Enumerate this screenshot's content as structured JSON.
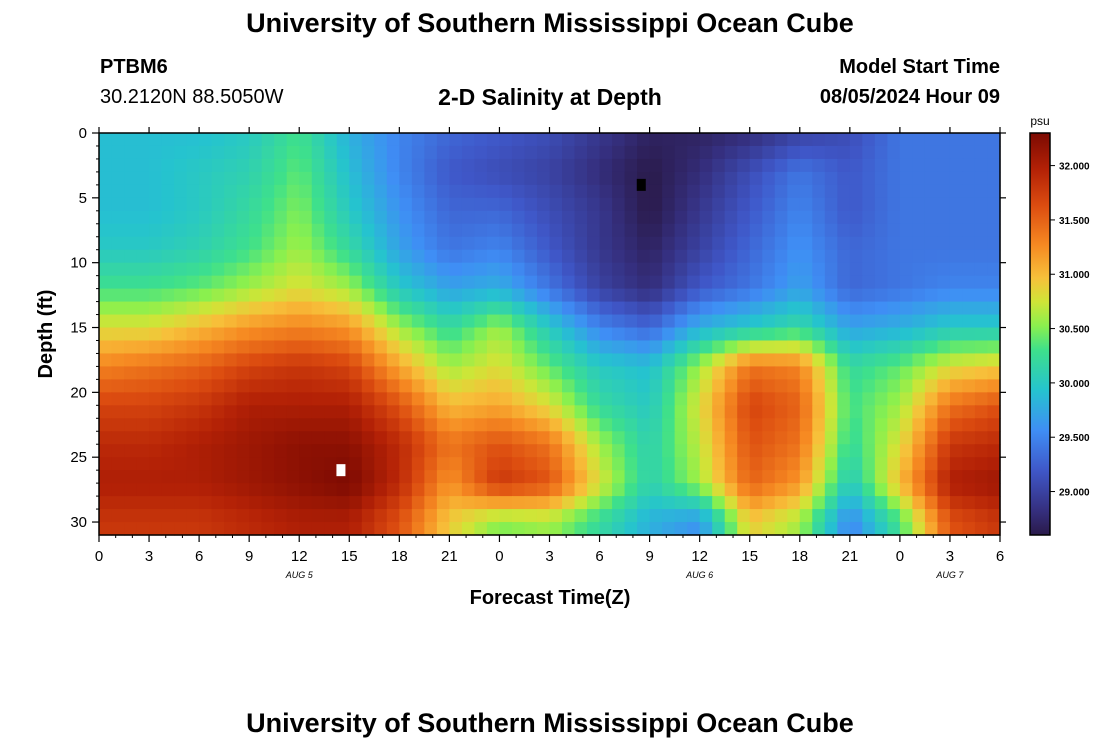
{
  "header": {
    "title": "University of Southern Mississippi Ocean Cube",
    "station_id": "PTBM6",
    "station_coords": "30.2120N  88.5050W",
    "subtitle": "2-D Salinity at Depth",
    "model_start_label": "Model Start Time",
    "model_start_value": "08/05/2024 Hour 09"
  },
  "footer": {
    "title": "University of Southern Mississippi Ocean Cube"
  },
  "chart_data": {
    "type": "heatmap",
    "title": "2-D Salinity at Depth",
    "xlabel": "Forecast Time(Z)",
    "ylabel": "Depth (ft)",
    "x_ticks": [
      "0",
      "3",
      "6",
      "9",
      "12",
      "15",
      "18",
      "21",
      "0",
      "3",
      "6",
      "9",
      "12",
      "15",
      "18",
      "21",
      "0",
      "3",
      "6"
    ],
    "x_range_hours": [
      0,
      54
    ],
    "day_labels": [
      {
        "label": "AUG 5",
        "hour": 12
      },
      {
        "label": "AUG 6",
        "hour": 36
      },
      {
        "label": "AUG 7",
        "hour": 51
      }
    ],
    "y_ticks": [
      0,
      5,
      10,
      15,
      20,
      25,
      30
    ],
    "ylim": [
      0,
      31
    ],
    "y_inverted": true,
    "colorbar": {
      "unit": "psu",
      "ticks": [
        "29.000",
        "29.500",
        "30.000",
        "30.500",
        "31.000",
        "31.500",
        "32.000"
      ],
      "range": [
        28.6,
        32.3
      ]
    },
    "markers": [
      {
        "type": "min",
        "hour": 32.5,
        "depth": 4,
        "color": "#000000"
      },
      {
        "type": "max",
        "hour": 14.5,
        "depth": 26,
        "color": "#ffffff"
      }
    ],
    "depths": [
      0,
      3,
      6,
      9,
      12,
      15,
      18,
      21,
      24,
      27,
      30
    ],
    "hours": [
      0,
      3,
      6,
      9,
      12,
      15,
      18,
      21,
      24,
      27,
      30,
      33,
      36,
      39,
      42,
      45,
      48,
      51,
      54
    ],
    "values": [
      [
        29.9,
        29.9,
        29.9,
        30.0,
        30.3,
        29.8,
        29.5,
        29.3,
        29.2,
        29.1,
        28.9,
        28.7,
        28.7,
        28.8,
        29.0,
        29.1,
        29.4,
        29.4,
        29.4
      ],
      [
        29.9,
        29.9,
        30.0,
        30.1,
        30.4,
        29.9,
        29.5,
        29.2,
        29.1,
        29.0,
        28.8,
        28.6,
        28.8,
        29.1,
        29.4,
        29.2,
        29.4,
        29.4,
        29.4
      ],
      [
        29.9,
        29.9,
        30.0,
        30.2,
        30.5,
        30.0,
        29.6,
        29.3,
        29.3,
        29.1,
        28.9,
        28.6,
        28.9,
        29.2,
        29.5,
        29.2,
        29.4,
        29.4,
        29.4
      ],
      [
        30.0,
        30.0,
        30.1,
        30.3,
        30.6,
        30.2,
        29.7,
        29.4,
        29.5,
        29.2,
        28.9,
        28.7,
        29.0,
        29.3,
        29.6,
        29.3,
        29.4,
        29.4,
        29.4
      ],
      [
        30.3,
        30.3,
        30.4,
        30.6,
        30.8,
        30.6,
        30.0,
        29.7,
        29.8,
        29.4,
        29.0,
        28.8,
        29.2,
        29.4,
        29.7,
        29.3,
        29.4,
        29.5,
        29.5
      ],
      [
        30.8,
        30.8,
        31.0,
        31.2,
        31.3,
        31.2,
        30.6,
        30.2,
        30.6,
        30.0,
        29.5,
        29.3,
        29.8,
        30.0,
        30.2,
        29.7,
        29.8,
        30.0,
        30.0
      ],
      [
        31.3,
        31.4,
        31.5,
        31.7,
        31.8,
        31.7,
        31.1,
        30.6,
        30.8,
        30.4,
        30.0,
        29.9,
        30.6,
        31.4,
        31.3,
        30.2,
        30.4,
        30.8,
        30.9
      ],
      [
        31.7,
        31.7,
        31.8,
        32.0,
        32.0,
        32.0,
        31.6,
        31.0,
        31.1,
        30.8,
        30.2,
        30.0,
        30.8,
        31.7,
        31.5,
        30.3,
        30.6,
        31.4,
        31.6
      ],
      [
        31.9,
        31.9,
        32.0,
        32.1,
        32.2,
        32.2,
        31.9,
        31.4,
        31.6,
        31.4,
        30.6,
        30.1,
        30.7,
        31.6,
        31.4,
        30.2,
        30.8,
        31.8,
        31.9
      ],
      [
        32.0,
        32.0,
        32.0,
        32.1,
        32.2,
        32.3,
        31.9,
        31.2,
        31.8,
        31.6,
        30.8,
        30.1,
        30.6,
        31.5,
        31.2,
        30.0,
        31.0,
        32.0,
        32.1
      ],
      [
        31.8,
        31.8,
        31.8,
        31.9,
        32.0,
        32.0,
        31.6,
        30.9,
        30.5,
        30.6,
        30.2,
        29.8,
        29.6,
        30.9,
        30.6,
        29.5,
        30.3,
        31.6,
        31.8
      ]
    ]
  }
}
